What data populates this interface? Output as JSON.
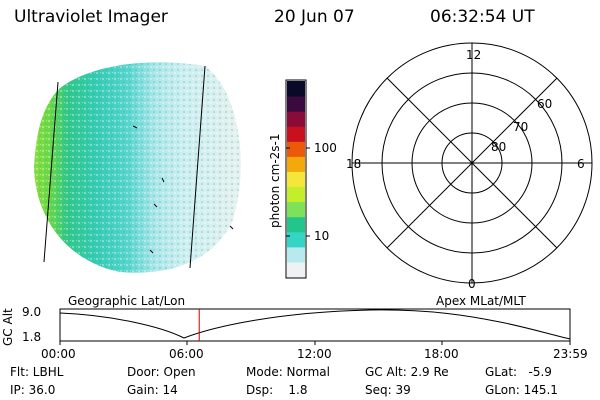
{
  "header": {
    "title": "Ultraviolet Imager",
    "date": "20 Jun 07",
    "time": "06:32:54 UT"
  },
  "colorbar": {
    "unit_label": "photon cm-2s-1",
    "ticks": [
      "100",
      "10"
    ],
    "colors": [
      "#eef2f3",
      "#b9e9ee",
      "#34d5c6",
      "#22c58c",
      "#7fe05a",
      "#c2ee2b",
      "#f5e63a",
      "#f3a90c",
      "#ec5a09",
      "#c8101f",
      "#8a0a38",
      "#3a0a3e",
      "#0a0a28"
    ]
  },
  "polar": {
    "mlt_labels": {
      "top": "12",
      "right": "6",
      "bottom": "0",
      "left": "18"
    },
    "lat_labels": [
      "60",
      "70",
      "80"
    ]
  },
  "timeline": {
    "gc_alt_label": "GC Alt",
    "y_top": "9.0",
    "y_bottom": "1.8",
    "left_caption": "Geographic Lat/Lon",
    "right_caption": "Apex MLat/MLT",
    "x_ticks": [
      "00:00",
      "06:00",
      "12:00",
      "18:00",
      "23:59"
    ],
    "current_marker_fraction": 0.273
  },
  "status": {
    "flt": "Flt: LBHL",
    "ip": "IP: 36.0",
    "door": "Door: Open",
    "gain": "Gain: 14",
    "mode": "Mode: Normal",
    "dsp": "Dsp:    1.8",
    "gc_alt": "GC Alt: 2.9 Re",
    "seq": "Seq: 39",
    "glat": "GLat:   -5.9",
    "glon": "GLon: 145.1"
  }
}
